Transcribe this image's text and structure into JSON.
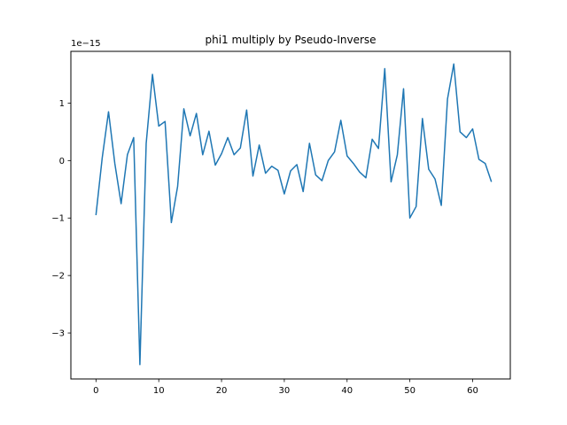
{
  "chart_data": {
    "type": "line",
    "title": "phi1 multiply by Pseudo-Inverse",
    "xlabel": "",
    "ylabel": "",
    "y_offset_label": "1e−15",
    "xlim": [
      -4,
      66
    ],
    "ylim": [
      -3.8,
      1.9
    ],
    "xticks": [
      0,
      10,
      20,
      30,
      40,
      50,
      60
    ],
    "xtick_labels": [
      "0",
      "10",
      "20",
      "30",
      "40",
      "50",
      "60"
    ],
    "yticks": [
      -3,
      -2,
      -1,
      0,
      1
    ],
    "ytick_labels": [
      "−3",
      "−2",
      "−1",
      "0",
      "1"
    ],
    "grid": false,
    "line_color": "#1f77b4",
    "series": [
      {
        "x": [
          0,
          1,
          2,
          3,
          4,
          5,
          6,
          7,
          8,
          9,
          10,
          11,
          12,
          13,
          14,
          15,
          16,
          17,
          18,
          19,
          20,
          21,
          22,
          23,
          24,
          25,
          26,
          27,
          28,
          29,
          30,
          31,
          32,
          33,
          34,
          35,
          36,
          37,
          38,
          39,
          40,
          41,
          42,
          43,
          44,
          45,
          46,
          47,
          48,
          49,
          50,
          51,
          52,
          53,
          54,
          55,
          56,
          57,
          58,
          59,
          60,
          61,
          62,
          63
        ],
        "values": [
          -0.95,
          0.05,
          0.85,
          -0.05,
          -0.75,
          0.1,
          0.4,
          -3.55,
          0.3,
          1.5,
          0.6,
          0.68,
          -1.08,
          -0.45,
          0.9,
          0.43,
          0.82,
          0.1,
          0.51,
          -0.08,
          0.12,
          0.4,
          0.1,
          0.22,
          0.88,
          -0.27,
          0.27,
          -0.22,
          -0.1,
          -0.17,
          -0.58,
          -0.18,
          -0.07,
          -0.54,
          0.3,
          -0.25,
          -0.35,
          0.0,
          0.15,
          0.7,
          0.08,
          -0.05,
          -0.2,
          -0.3,
          0.37,
          0.21,
          1.6,
          -0.37,
          0.1,
          1.25,
          -1.0,
          -0.8,
          0.73,
          -0.15,
          -0.32,
          -0.78,
          1.07,
          1.68,
          0.5,
          0.4,
          0.55,
          0.02,
          -0.05,
          -0.37
        ]
      }
    ]
  }
}
